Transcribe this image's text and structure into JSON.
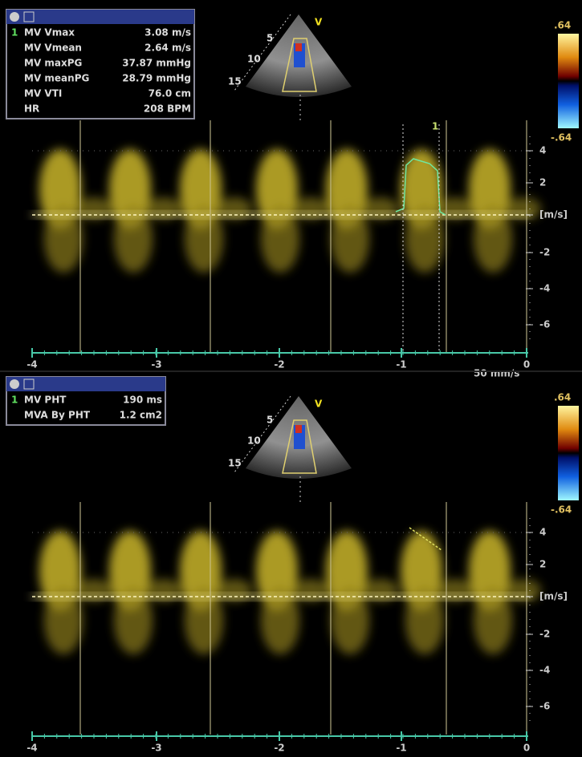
{
  "panels": [
    {
      "measurements": {
        "index": "1",
        "rows": [
          {
            "label": "MV Vmax",
            "value": "3.08 m/s"
          },
          {
            "label": "MV Vmean",
            "value": "2.64 m/s"
          },
          {
            "label": "MV maxPG",
            "value": "37.87 mmHg"
          },
          {
            "label": "MV meanPG",
            "value": "28.79 mmHg"
          },
          {
            "label": "MV VTI",
            "value": "76.0 cm"
          },
          {
            "label": "HR",
            "value": "208 BPM"
          }
        ]
      },
      "sector": {
        "depth_labels": [
          "5",
          "10",
          "15"
        ],
        "mode": "V"
      },
      "color_bar": {
        "max": ".64",
        "min": "-.64"
      },
      "velocity_axis": {
        "ticks": [
          "4",
          "2",
          "[m/s]",
          "-2",
          "-4",
          "-6"
        ]
      },
      "time_axis": {
        "ticks": [
          "-4",
          "-3",
          "-2",
          "-1",
          "0"
        ],
        "sweep": "50 mm/s"
      },
      "cursor_label": "1"
    },
    {
      "measurements": {
        "index": "1",
        "rows": [
          {
            "label": "MV PHT",
            "value": "190 ms"
          },
          {
            "label": "MVA By PHT",
            "value": "1.2 cm2"
          }
        ]
      },
      "sector": {
        "depth_labels": [
          "5",
          "10",
          "15"
        ],
        "mode": "V"
      },
      "color_bar": {
        "max": ".64",
        "min": "-.64"
      },
      "velocity_axis": {
        "ticks": [
          "4",
          "2",
          "[m/s]",
          "-2",
          "-4",
          "-6"
        ]
      },
      "time_axis": {
        "ticks": [
          "-4",
          "-3",
          "-2",
          "-1",
          "0"
        ]
      }
    }
  ]
}
